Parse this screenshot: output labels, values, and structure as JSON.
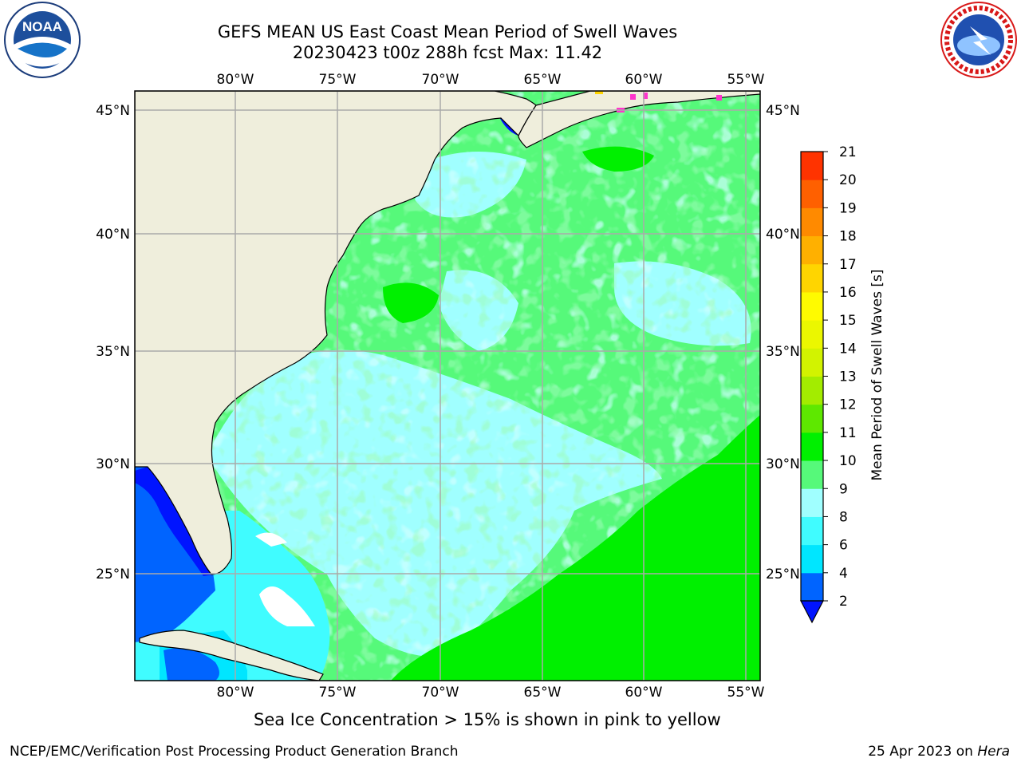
{
  "title": {
    "line1": "GEFS MEAN US East Coast Mean Period of Swell Waves",
    "line2": "20230423 t00z 288h fcst   Max: 11.42"
  },
  "logos": {
    "noaa_text": "NOAA",
    "noaa_ring": "NATIONAL OCEANIC AND ATMOSPHERIC ADMINISTRATION · U.S. DEPARTMENT OF COMMERCE",
    "nws_ring": "NATIONAL WEATHER SERVICE"
  },
  "map": {
    "lon_labels": [
      "80°W",
      "75°W",
      "70°W",
      "65°W",
      "60°W",
      "55°W"
    ],
    "lat_labels": [
      "45°N",
      "40°N",
      "35°N",
      "30°N",
      "25°N"
    ],
    "colors": {
      "land": "#efeedc",
      "grid": "#aaaaaa",
      "ice": "#ff33cc"
    }
  },
  "colorbar": {
    "label": "Mean Period of Swell Waves [s]",
    "ticks": [
      "2",
      "4",
      "6",
      "8",
      "9",
      "10",
      "11",
      "12",
      "13",
      "14",
      "15",
      "16",
      "17",
      "18",
      "19",
      "20",
      "21"
    ],
    "colors": [
      "#0064ff",
      "#00e6ff",
      "#40fcff",
      "#a0ffff",
      "#56f97a",
      "#00f000",
      "#5ee800",
      "#a3ec00",
      "#d2f300",
      "#ebf700",
      "#fffb00",
      "#ffd500",
      "#ffb000",
      "#ff8a00",
      "#ff6000",
      "#ff3300",
      "#ff0000"
    ],
    "extend_color": "#0014ff"
  },
  "note": "Sea Ice Concentration > 15% is shown in pink to yellow",
  "footer": {
    "left": "NCEP/EMC/Verification Post Processing Product Generation Branch",
    "right_prefix": "25 Apr 2023 on ",
    "right_host": "Hera"
  }
}
